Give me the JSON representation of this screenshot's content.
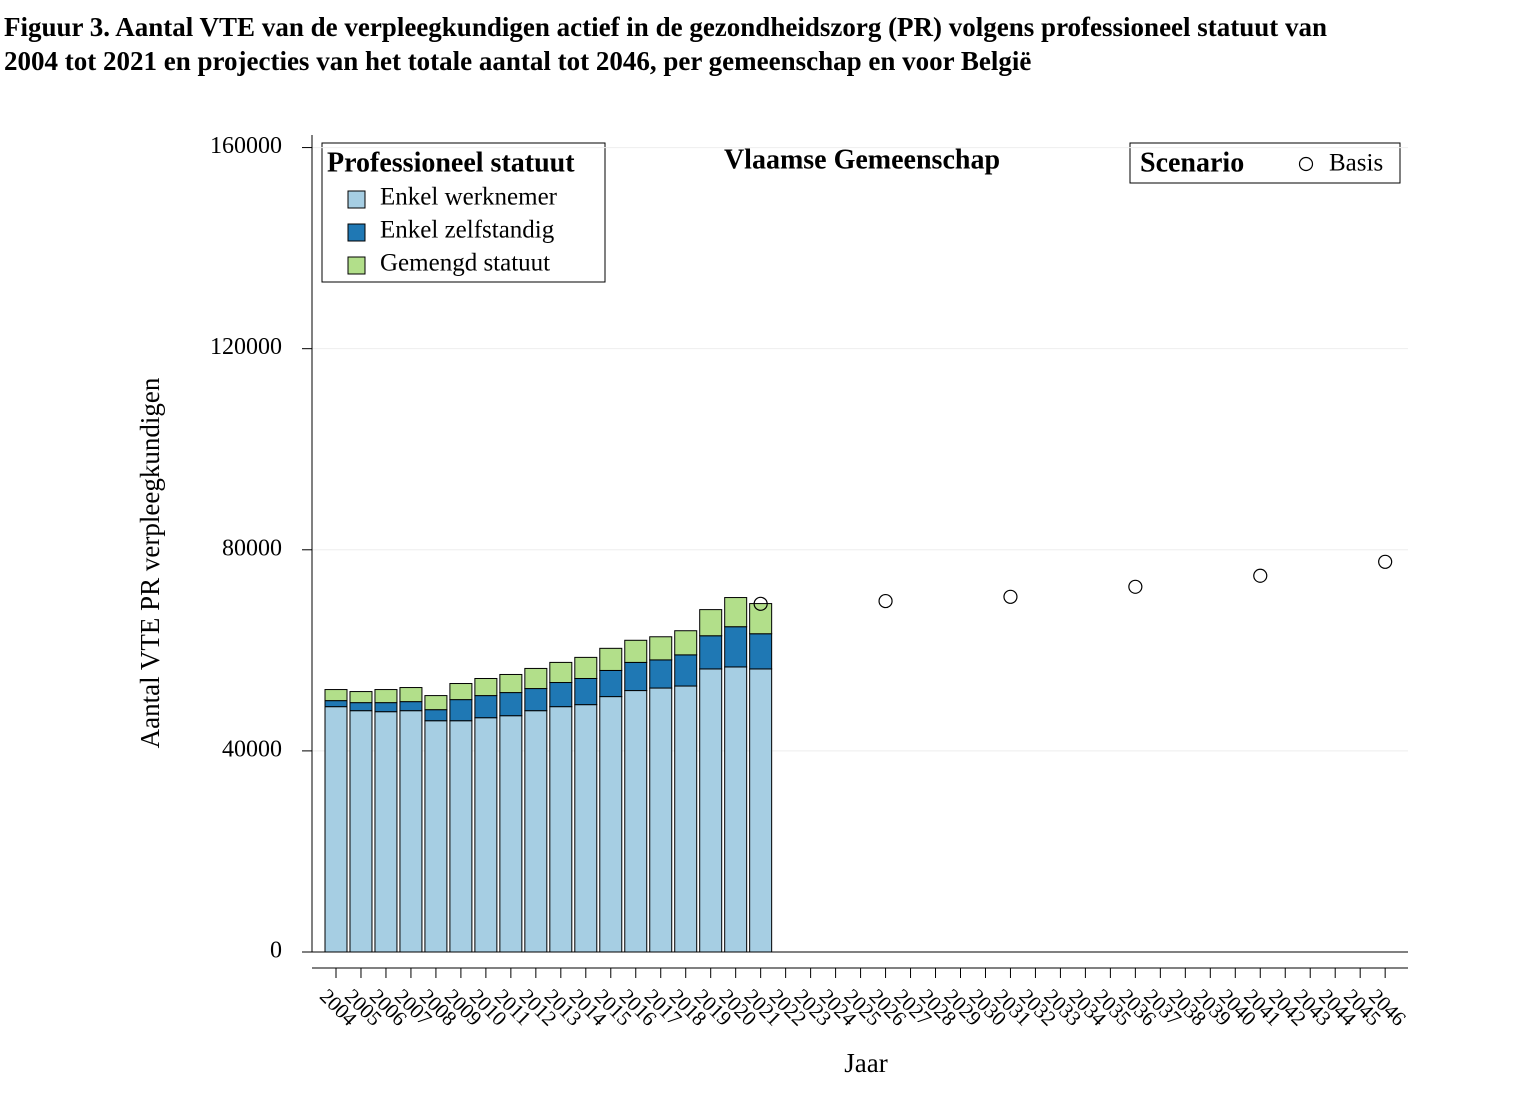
{
  "chart_data": {
    "type": "bar",
    "title": [
      "Figuur 3. Aantal VTE van de verpleegkundigen actief in de gezondheidszorg (PR) volgens professioneel statuut van",
      "2004 tot 2021 en projecties van het totale aantal tot 2046, per gemeenschap en voor België"
    ],
    "panel_title": "Vlaamse Gemeenschap",
    "x_label": "Jaar",
    "y_label": "Aantal VTE PR verpleegkundigen",
    "legend_title": "Professioneel statuut",
    "scatter_legend_title": "Scenario",
    "stacked": true,
    "grid": true,
    "categories": [
      "2004",
      "2005",
      "2006",
      "2007",
      "2008",
      "2009",
      "2010",
      "2011",
      "2012",
      "2013",
      "2014",
      "2015",
      "2016",
      "2017",
      "2018",
      "2019",
      "2020",
      "2021",
      "2022",
      "2023",
      "2024",
      "2025",
      "2026",
      "2027",
      "2028",
      "2029",
      "2030",
      "2031",
      "2032",
      "2033",
      "2034",
      "2035",
      "2036",
      "2037",
      "2038",
      "2039",
      "2040",
      "2041",
      "2042",
      "2043",
      "2044",
      "2045",
      "2046"
    ],
    "ylim": [
      0,
      162500
    ],
    "yticks": [
      0,
      40000,
      80000,
      120000,
      160000
    ],
    "series": [
      {
        "name": "Enkel werknemer",
        "type": "bar",
        "color": "#a6cee3",
        "values": [
          48800,
          48000,
          47800,
          48000,
          46000,
          46000,
          46600,
          47000,
          48000,
          48800,
          49200,
          50800,
          52000,
          52500,
          52900,
          56300,
          56700,
          56300,
          null,
          null,
          null,
          null,
          null,
          null,
          null,
          null,
          null,
          null,
          null,
          null,
          null,
          null,
          null,
          null,
          null,
          null,
          null,
          null,
          null,
          null,
          null,
          null,
          null
        ]
      },
      {
        "name": "Enkel zelfstandig",
        "type": "bar",
        "color": "#1f78b4",
        "values": [
          1200,
          1600,
          1800,
          1800,
          2200,
          4200,
          4400,
          4600,
          4400,
          4800,
          5200,
          5200,
          5600,
          5600,
          6200,
          6600,
          8000,
          7000,
          null,
          null,
          null,
          null,
          null,
          null,
          null,
          null,
          null,
          null,
          null,
          null,
          null,
          null,
          null,
          null,
          null,
          null,
          null,
          null,
          null,
          null,
          null,
          null,
          null
        ]
      },
      {
        "name": "Gemengd statuut",
        "type": "bar",
        "color": "#b2df8a",
        "values": [
          2200,
          2200,
          2600,
          2800,
          2800,
          3200,
          3400,
          3600,
          4000,
          4000,
          4200,
          4400,
          4400,
          4600,
          4800,
          5200,
          5800,
          6000,
          null,
          null,
          null,
          null,
          null,
          null,
          null,
          null,
          null,
          null,
          null,
          null,
          null,
          null,
          null,
          null,
          null,
          null,
          null,
          null,
          null,
          null,
          null,
          null,
          null
        ]
      },
      {
        "name": "Basis",
        "type": "scatter",
        "color": "#000000",
        "values": [
          null,
          null,
          null,
          null,
          null,
          null,
          null,
          null,
          null,
          null,
          null,
          null,
          null,
          null,
          null,
          null,
          null,
          69250,
          null,
          null,
          null,
          null,
          69800,
          null,
          null,
          null,
          null,
          70650,
          null,
          null,
          null,
          null,
          72640,
          null,
          null,
          null,
          null,
          74830,
          null,
          null,
          null,
          null,
          77610
        ]
      }
    ]
  }
}
